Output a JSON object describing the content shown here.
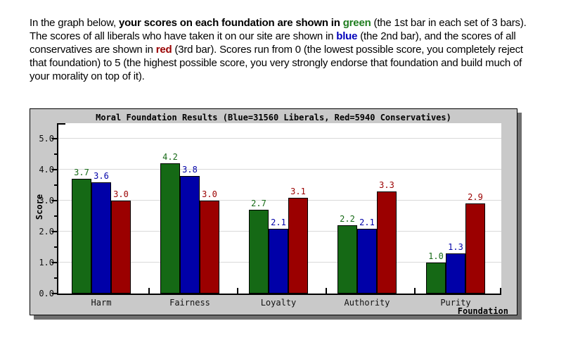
{
  "intro": {
    "segments": [
      {
        "text": "In the graph below, "
      },
      {
        "text": "your scores on each foundation are shown in "
      },
      {
        "text": "green"
      },
      {
        "text": " (the 1st bar in each set of 3 bars). The scores of all liberals who have taken it on our site are shown in "
      },
      {
        "text": "blue"
      },
      {
        "text": " (the 2nd bar), and the scores of all conservatives are shown in "
      },
      {
        "text": "red"
      },
      {
        "text": " (3rd bar). Scores run from 0 (the lowest possible score, you completely reject that foundation) to 5 (the highest possible score, you very strongly endorse that foundation and build much of your morality on top of it)."
      }
    ],
    "keyword_colors": {
      "green": "#1e7d1e",
      "blue": "#0000bb",
      "red": "#990000"
    }
  },
  "chart_data": {
    "type": "bar",
    "title": "Moral Foundation Results (Blue=31560 Liberals, Red=5940 Conservatives)",
    "xlabel": "Foundation",
    "ylabel": "Score",
    "categories": [
      "Harm",
      "Fairness",
      "Loyalty",
      "Authority",
      "Purity"
    ],
    "series": [
      {
        "name": "your-scores",
        "color": "#156915",
        "values": [
          3.7,
          4.2,
          2.7,
          2.2,
          1.0
        ]
      },
      {
        "name": "liberals",
        "color": "#0000a8",
        "values": [
          3.6,
          3.8,
          2.1,
          2.1,
          1.3
        ]
      },
      {
        "name": "conservatives",
        "color": "#9b0000",
        "values": [
          3.0,
          3.0,
          3.1,
          3.3,
          2.9
        ]
      }
    ],
    "ylim": [
      0,
      5.5
    ],
    "yticks": [
      0,
      1,
      2,
      3,
      4,
      5
    ],
    "ytick_labels": [
      "0.0",
      "1.0",
      "2.0",
      "3.0",
      "4.0",
      "5.0"
    ],
    "yticks_minor": [
      0.5,
      1.5,
      2.5,
      3.5,
      4.5
    ],
    "grid": true,
    "legend_position": "in-title",
    "liberals_n": "31560",
    "conservatives_n": "5940"
  }
}
